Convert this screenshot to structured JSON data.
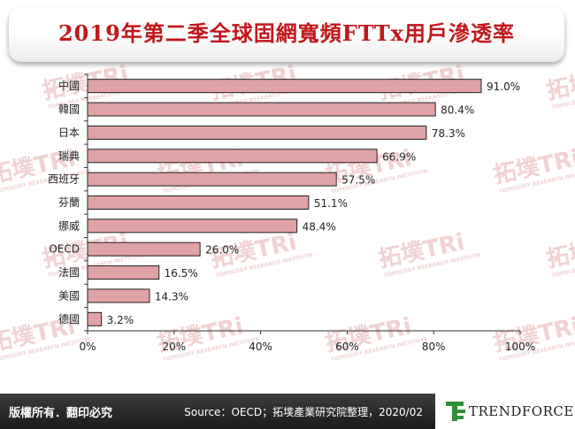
{
  "title": "2019年第二季全球固網寬頻FTTx用戶滲透率",
  "chart_data": {
    "type": "bar",
    "orientation": "horizontal",
    "categories": [
      "中國",
      "韓國",
      "日本",
      "瑞典",
      "西班牙",
      "芬蘭",
      "挪威",
      "OECD",
      "法國",
      "美國",
      "德國"
    ],
    "values": [
      91.0,
      80.4,
      78.3,
      66.9,
      57.5,
      51.1,
      48.4,
      26.0,
      16.5,
      14.3,
      3.2
    ],
    "value_labels": [
      "91.0%",
      "80.4%",
      "78.3%",
      "66.9%",
      "57.5%",
      "51.1%",
      "48.4%",
      "26.0%",
      "16.5%",
      "14.3%",
      "3.2%"
    ],
    "x_ticks": [
      "0%",
      "20%",
      "40%",
      "60%",
      "80%",
      "100%"
    ],
    "xlim": [
      0,
      100
    ],
    "unit": "%",
    "grid": false,
    "legend": "none",
    "bar_color": "#e0a3a5",
    "bar_border": "#1f1f1f"
  },
  "watermark": {
    "brand_cn": "拓墣",
    "brand_en": "TRi",
    "sub": "TOPOLOGY RESEARCH INSTITUTE"
  },
  "footer": {
    "copyright": "版權所有．翻印必究",
    "source": "Source：OECD；拓墣產業研究院整理，2020/02",
    "logo_text": "TRENDFORCE"
  },
  "colors": {
    "title": "#c0171b",
    "footer_bg": "#2a2a2a",
    "logo_green": "#2f8f3a"
  }
}
